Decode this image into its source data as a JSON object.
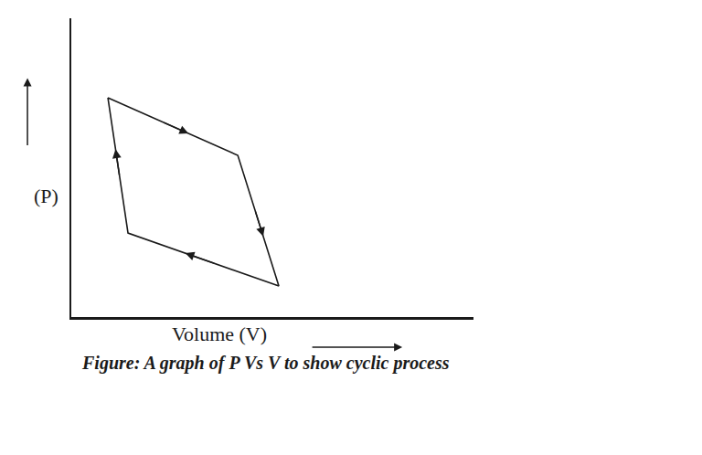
{
  "chart_data": {
    "type": "line",
    "x": [
      9.1,
      41.4,
      51.6,
      14.1,
      9.1
    ],
    "values": [
      73.4,
      54.1,
      10.4,
      28.1,
      73.4
    ],
    "xlabel": "Volume (V)",
    "ylabel": "(P)",
    "caption": "Figure: A graph of P Vs V to show cyclic process",
    "xlim": [
      0,
      100
    ],
    "ylim": [
      0,
      100
    ],
    "tick_labels": false,
    "grid": false,
    "color": "#1a1a1a",
    "marker": "none",
    "line_style": "solid"
  }
}
